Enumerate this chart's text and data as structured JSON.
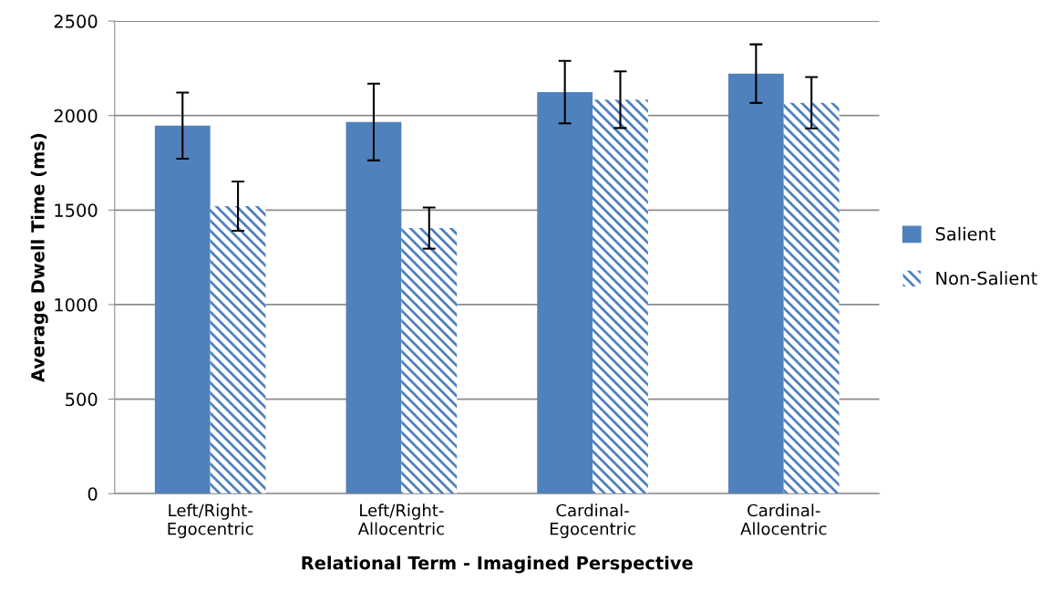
{
  "chart_data": {
    "type": "bar",
    "xlabel": "Relational Term - Imagined Perspective",
    "ylabel": "Average Dwell Time (ms)",
    "categories": [
      "Left/Right-\nEgocentric",
      "Left/Right-\nAllocentric",
      "Cardinal-\nEgocentric",
      "Cardinal-\nAllocentric"
    ],
    "series": [
      {
        "name": "Salient",
        "color": "#4f81bd",
        "values": [
          1947,
          1966,
          2124,
          2222
        ],
        "errors": [
          175,
          203,
          165,
          155
        ]
      },
      {
        "name": "Non-Salient",
        "color": "#4f81bd",
        "values": [
          1521,
          1405,
          2084,
          2068
        ],
        "errors": [
          130,
          109,
          150,
          136
        ]
      }
    ],
    "ylim": [
      0,
      2500
    ],
    "yticks": [
      0,
      500,
      1000,
      1500,
      2000,
      2500
    ],
    "grid": "y",
    "legend": "right"
  }
}
